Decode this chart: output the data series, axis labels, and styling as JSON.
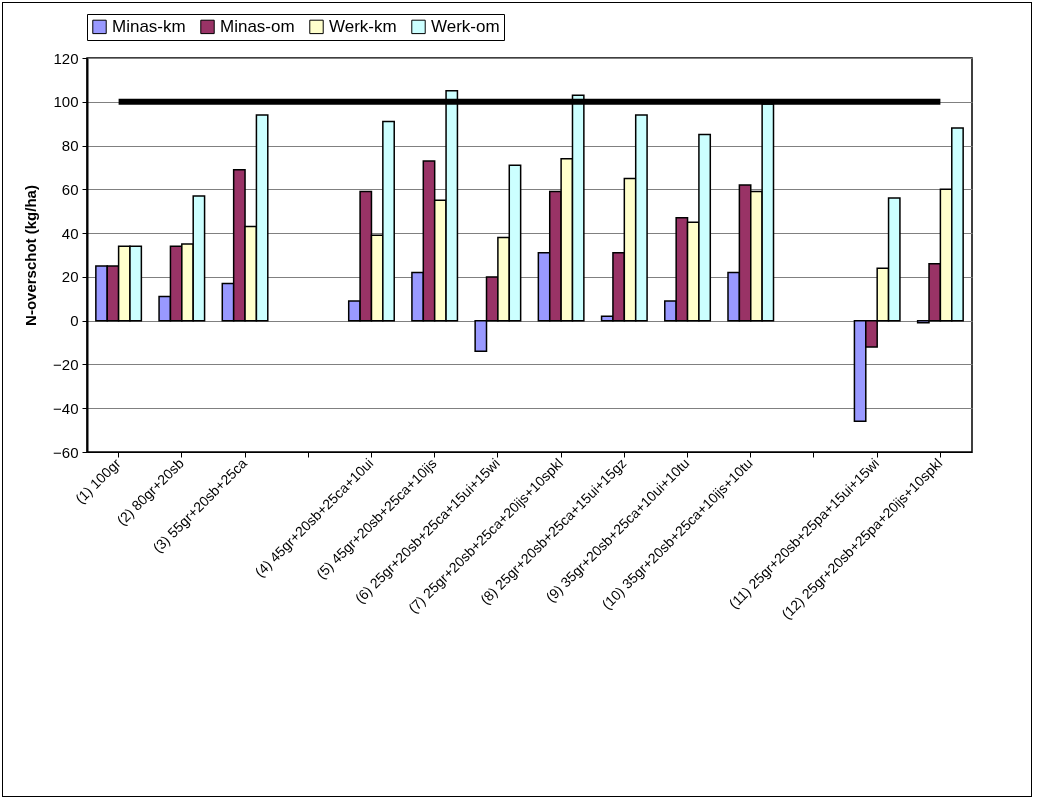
{
  "chart_data": {
    "type": "bar",
    "ylabel": "N-overschot (kg/ha)",
    "categories": [
      "(1) 100gr",
      "(2) 80gr+20sb",
      "(3) 55gr+20sb+25ca",
      null,
      "(4) 45gr+20sb+25ca+10ui",
      "(5) 45gr+20sb+25ca+10ijs",
      "(6) 25gr+20sb+25ca+15ui+15wi",
      "(7) 25gr+20sb+25ca+20ijs+10spkl",
      "(8) 25gr+20sb+25ca+15ui+15gz",
      "(9) 35gr+20sb+25ca+10ui+10tu",
      "(10) 35gr+20sb+25ca+10ijs+10tu",
      null,
      "(11) 25gr+20sb+25pa+15ui+15wi",
      "(12) 25gr+20sb+25pa+20ijs+10spkl"
    ],
    "series": [
      {
        "name": "Minas-km",
        "color": "#9999ff",
        "values": [
          25,
          11,
          17,
          null,
          9,
          22,
          -14,
          31,
          2,
          9,
          22,
          null,
          -46,
          -1
        ]
      },
      {
        "name": "Minas-om",
        "color": "#993366",
        "values": [
          25,
          34,
          69,
          null,
          59,
          73,
          20,
          59,
          31,
          47,
          62,
          null,
          -12,
          26
        ]
      },
      {
        "name": "Werk-km",
        "color": "#ffffcc",
        "values": [
          34,
          35,
          43,
          null,
          39,
          55,
          38,
          74,
          65,
          45,
          59,
          null,
          24,
          60
        ]
      },
      {
        "name": "Werk-om",
        "color": "#ccffff",
        "values": [
          34,
          57,
          94,
          null,
          91,
          105,
          71,
          103,
          94,
          85,
          99,
          null,
          56,
          88
        ]
      },
      {
        "type": "line",
        "color": "#000000",
        "marker": "none",
        "line_style": "solid",
        "values": [
          100,
          100,
          100,
          100,
          100,
          100,
          100,
          100,
          100,
          100,
          100,
          100,
          100,
          100
        ]
      }
    ],
    "ylim": [
      -60,
      120
    ],
    "yticks": [
      -60,
      -40,
      -20,
      0,
      20,
      40,
      60,
      80,
      100,
      120
    ],
    "grid": "y",
    "legend": "top"
  }
}
